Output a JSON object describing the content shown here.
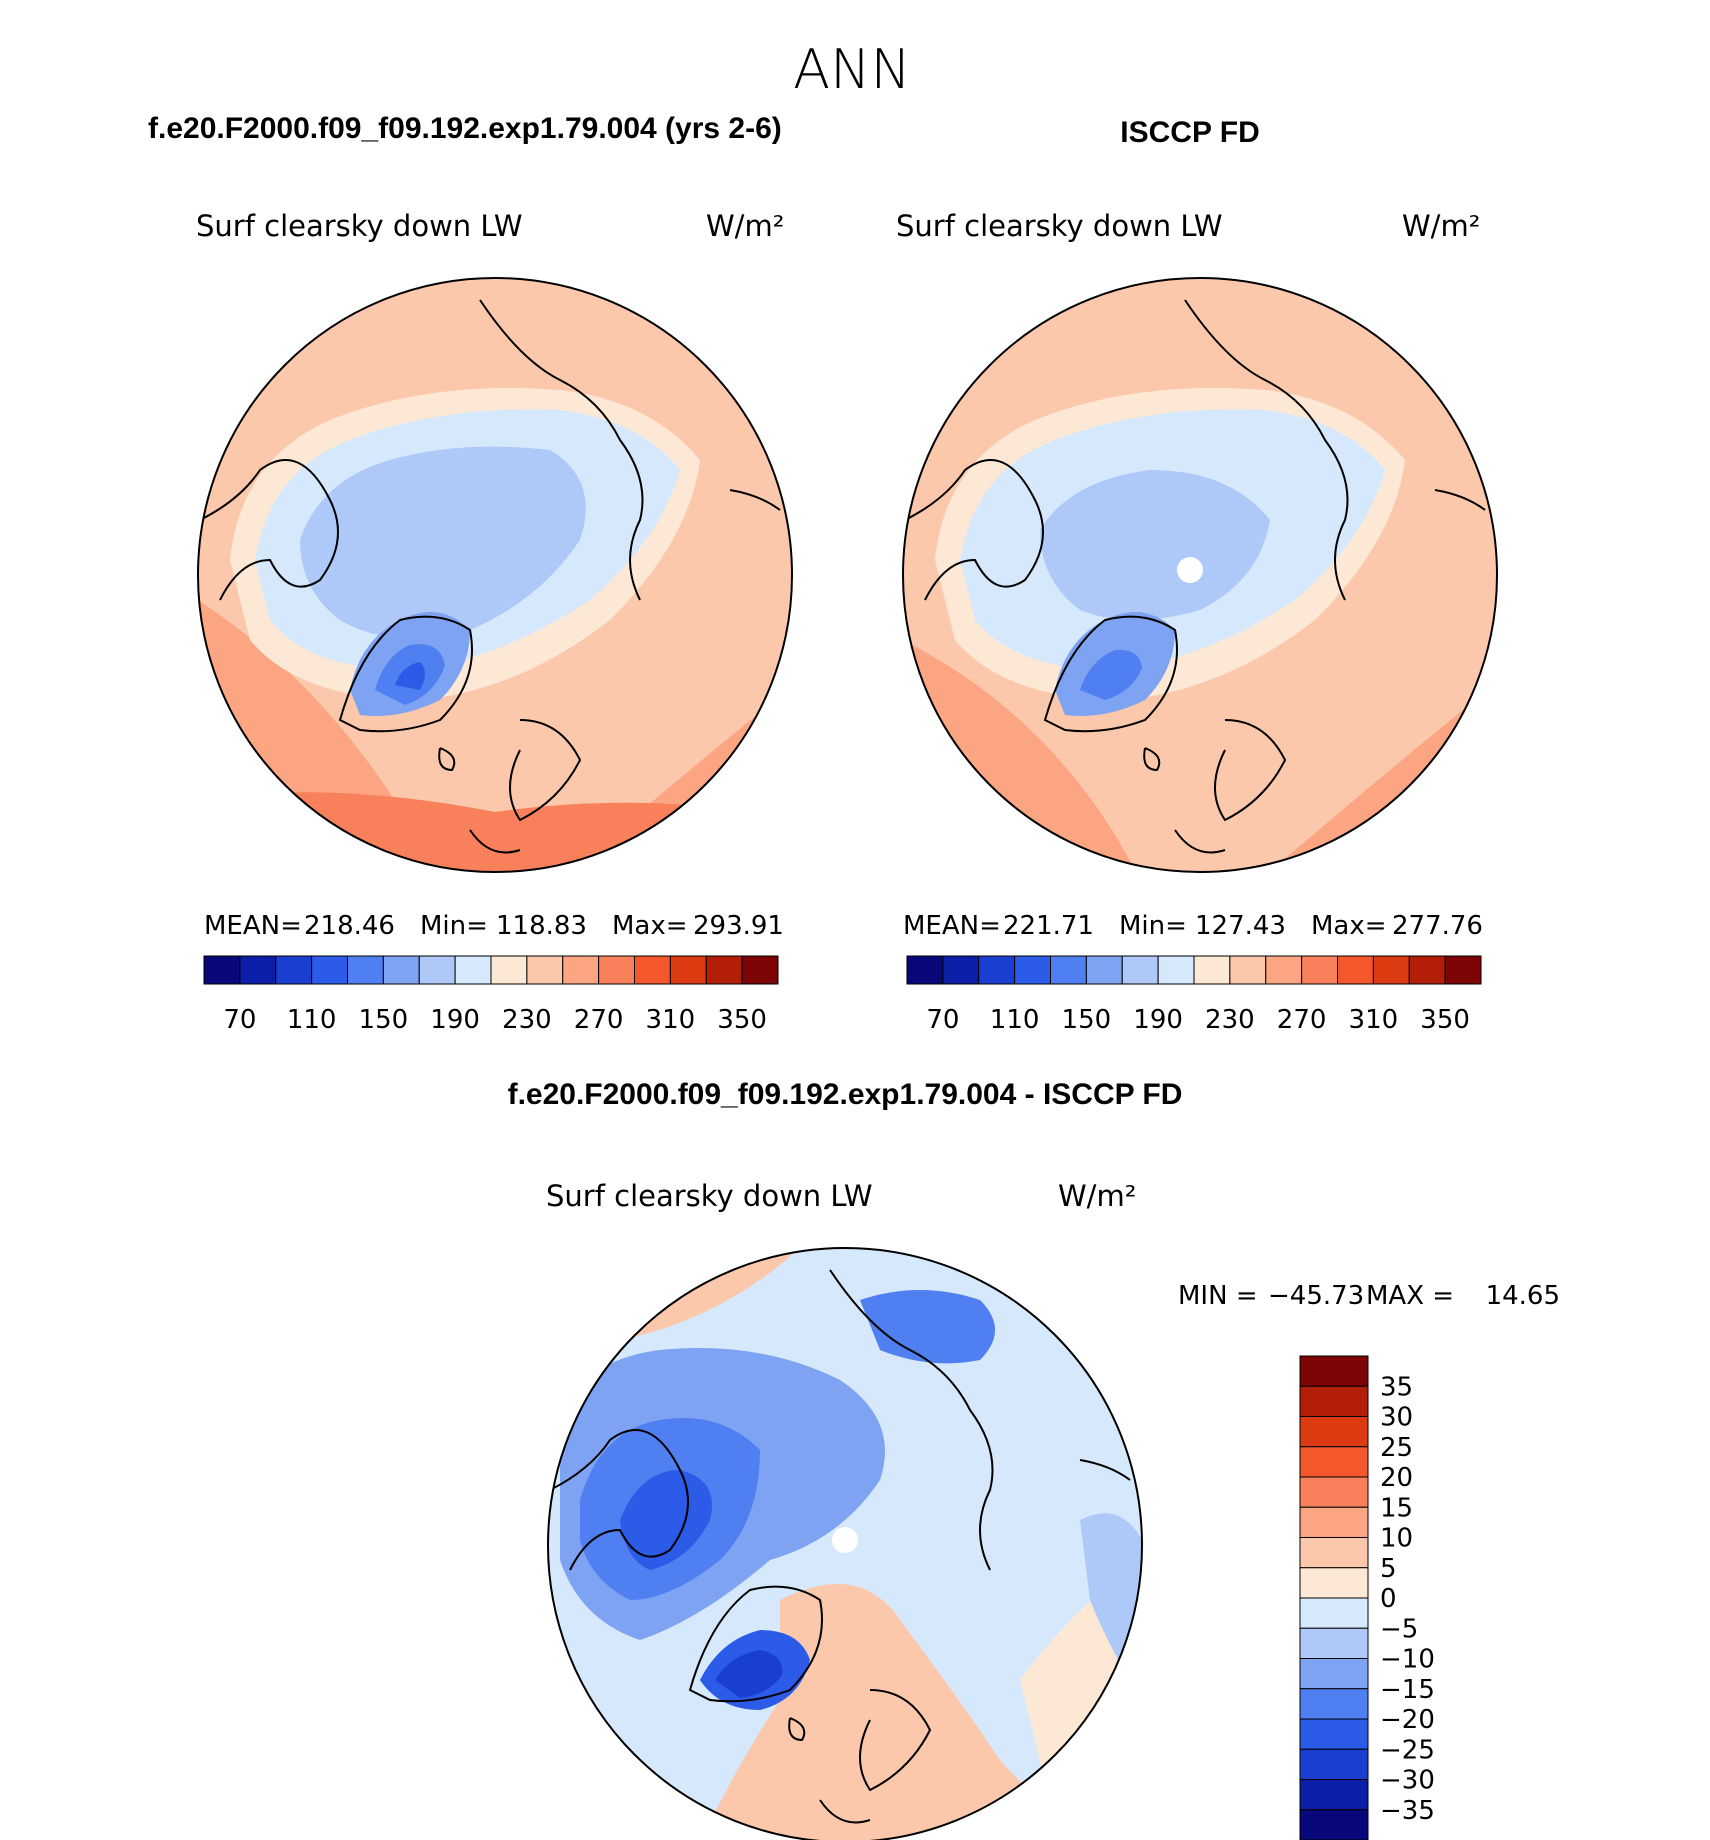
{
  "figure": {
    "title": "ANN"
  },
  "colors": {
    "scale": [
      "#08087a",
      "#0a1ea8",
      "#1a3fd0",
      "#2c5be8",
      "#4f7ff0",
      "#7ea3f2",
      "#aec8f7",
      "#d6e8fb",
      "#fde8d6",
      "#fcc8ac",
      "#fba582",
      "#f8805a",
      "#f5572d",
      "#dc3a10",
      "#b21e08",
      "#7d0505"
    ],
    "coast": "#000000",
    "missing": "#ffffff"
  },
  "chart_data": [
    {
      "type": "heatmap",
      "panel": "model",
      "header": "f.e20.F2000.f09_f09.192.exp1.79.004 (yrs 2-6)",
      "title": "Surf clearsky down LW",
      "units": "W/m²",
      "stats": {
        "mean_label": "MEAN=",
        "mean": "218.46",
        "min_label": "Min=",
        "min": "118.83",
        "max_label": "Max=",
        "max": "293.91"
      },
      "colorbar_ticks": [
        "70",
        "110",
        "150",
        "190",
        "230",
        "270",
        "310",
        "350"
      ],
      "levels": [
        70,
        90,
        110,
        130,
        150,
        170,
        190,
        210,
        230,
        250,
        270,
        290,
        310,
        330,
        350
      ]
    },
    {
      "type": "heatmap",
      "panel": "obs",
      "header": "ISCCP FD",
      "title": "Surf clearsky down LW",
      "units": "W/m²",
      "stats": {
        "mean_label": "MEAN=",
        "mean": "221.71",
        "min_label": "Min=",
        "min": "127.43",
        "max_label": "Max=",
        "max": "277.76"
      },
      "colorbar_ticks": [
        "70",
        "110",
        "150",
        "190",
        "230",
        "270",
        "310",
        "350"
      ],
      "levels": [
        70,
        90,
        110,
        130,
        150,
        170,
        190,
        210,
        230,
        250,
        270,
        290,
        310,
        330,
        350
      ]
    },
    {
      "type": "heatmap",
      "panel": "difference",
      "header": "f.e20.F2000.f09_f09.192.exp1.79.004 - ISCCP FD",
      "title": "Surf clearsky down LW",
      "units": "W/m²",
      "stats": {
        "min_label": "MIN =",
        "min": "−45.73",
        "max_label": "MAX =",
        "max": "14.65"
      },
      "colorbar_ticks": [
        "35",
        "30",
        "25",
        "20",
        "15",
        "10",
        "5",
        "0",
        "−5",
        "−10",
        "−15",
        "−20",
        "−25",
        "−30",
        "−35"
      ],
      "levels": [
        -35,
        -30,
        -25,
        -20,
        -15,
        -10,
        -5,
        0,
        5,
        10,
        15,
        20,
        25,
        30,
        35
      ]
    }
  ]
}
